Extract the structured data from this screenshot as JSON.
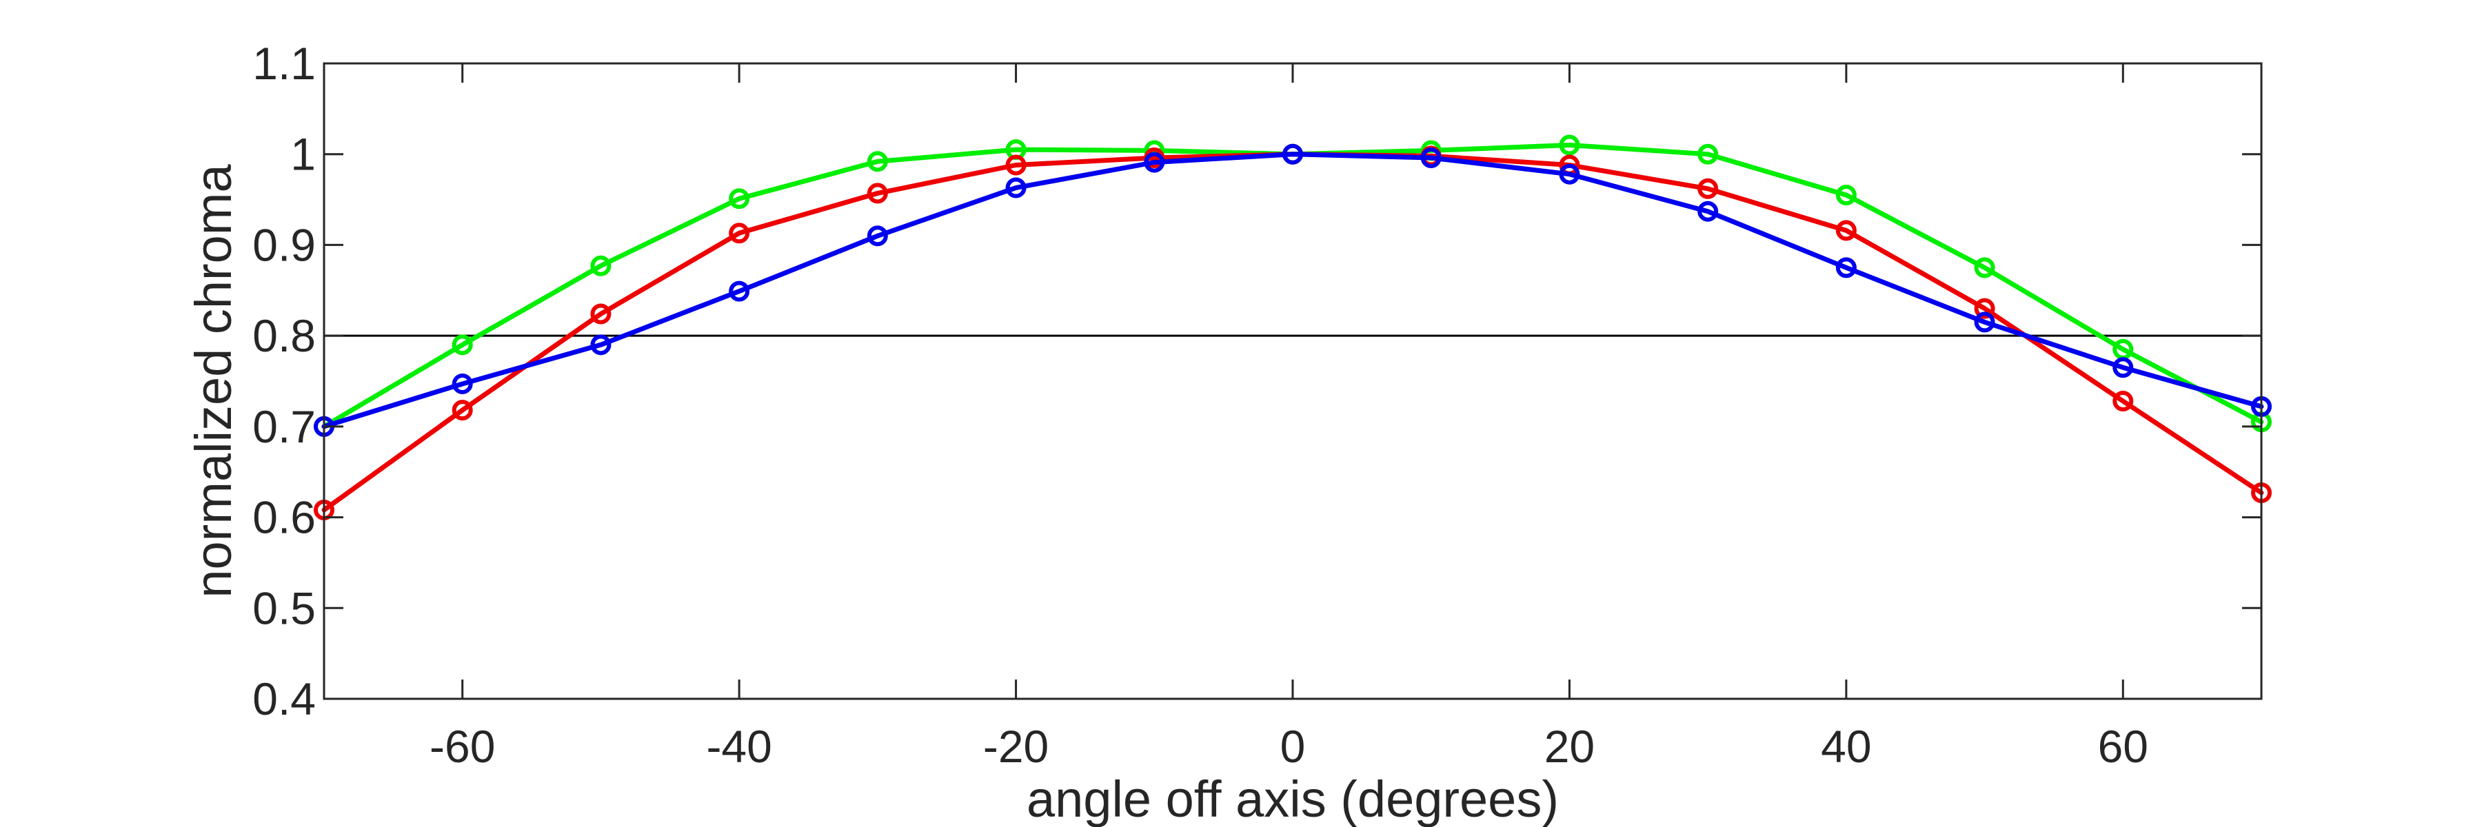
{
  "chart_data": {
    "type": "line",
    "title": "",
    "xlabel": "angle off axis (degrees)",
    "ylabel": "normalized chroma",
    "xlim": [
      -70,
      70
    ],
    "ylim": [
      0.4,
      1.1
    ],
    "xticks": [
      -60,
      -40,
      -20,
      0,
      20,
      40,
      60
    ],
    "xtick_labels": [
      "-60",
      "-40",
      "-20",
      "0",
      "20",
      "40",
      "60"
    ],
    "yticks": [
      0.4,
      0.5,
      0.6,
      0.7,
      0.8,
      0.9,
      1.0,
      1.1
    ],
    "ytick_labels": [
      "0.4",
      "0.5",
      "0.6",
      "0.7",
      "0.8",
      "0.9",
      "1",
      "1.1"
    ],
    "grid": false,
    "legend": "none",
    "reference_line": {
      "y": 0.8,
      "color": "#000000"
    },
    "x": [
      -70,
      -60,
      -50,
      -40,
      -30,
      -20,
      -10,
      0,
      10,
      20,
      30,
      40,
      50,
      60,
      70
    ],
    "series": [
      {
        "color": "#00ee00",
        "marker": "circle",
        "values": [
          0.7,
          0.79,
          0.877,
          0.951,
          0.992,
          1.005,
          1.004,
          1.0,
          1.004,
          1.01,
          1.0,
          0.955,
          0.875,
          0.785,
          0.705
        ]
      },
      {
        "color": "#ee0000",
        "marker": "circle",
        "values": [
          0.608,
          0.718,
          0.824,
          0.913,
          0.957,
          0.988,
          0.996,
          1.0,
          0.998,
          0.988,
          0.962,
          0.916,
          0.83,
          0.728,
          0.627
        ]
      },
      {
        "color": "#0000ee",
        "marker": "circle",
        "values": [
          0.7,
          0.747,
          0.79,
          0.849,
          0.91,
          0.963,
          0.991,
          1.0,
          0.996,
          0.978,
          0.937,
          0.875,
          0.815,
          0.765,
          0.722
        ]
      }
    ]
  }
}
